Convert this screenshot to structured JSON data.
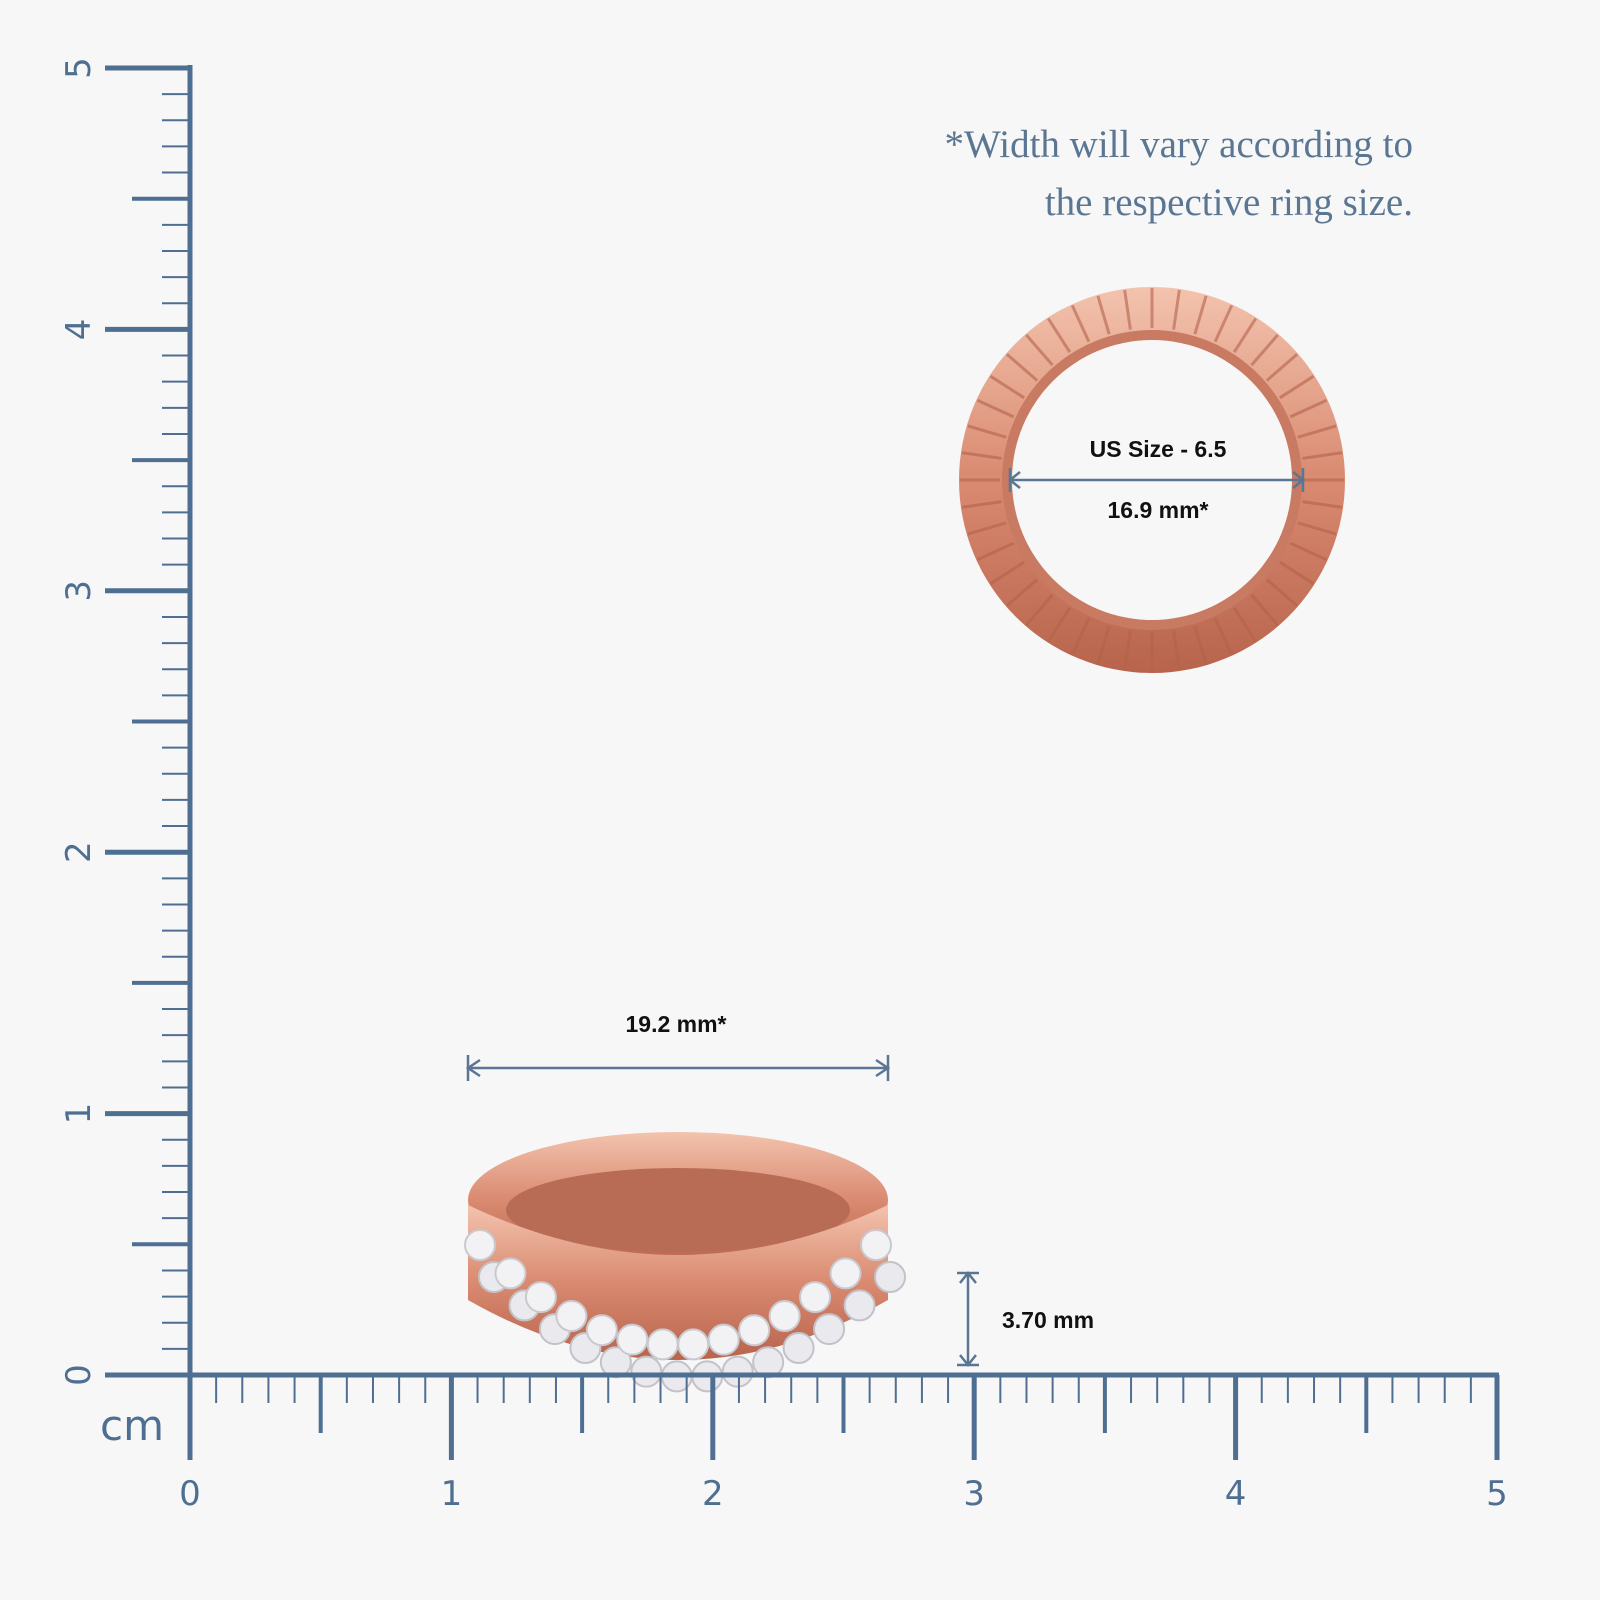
{
  "note": [
    "*Width will vary according to",
    "the respective ring size."
  ],
  "ruler": {
    "unit": "cm",
    "x_labels": [
      "0",
      "1",
      "2",
      "3",
      "4",
      "5"
    ],
    "y_labels": [
      "0",
      "1",
      "2",
      "3",
      "4",
      "5"
    ]
  },
  "top_view": {
    "size_label": "US Size - 6.5",
    "diameter": "16.9 mm*"
  },
  "side_view": {
    "width": "19.2 mm*",
    "height": "3.70 mm"
  }
}
